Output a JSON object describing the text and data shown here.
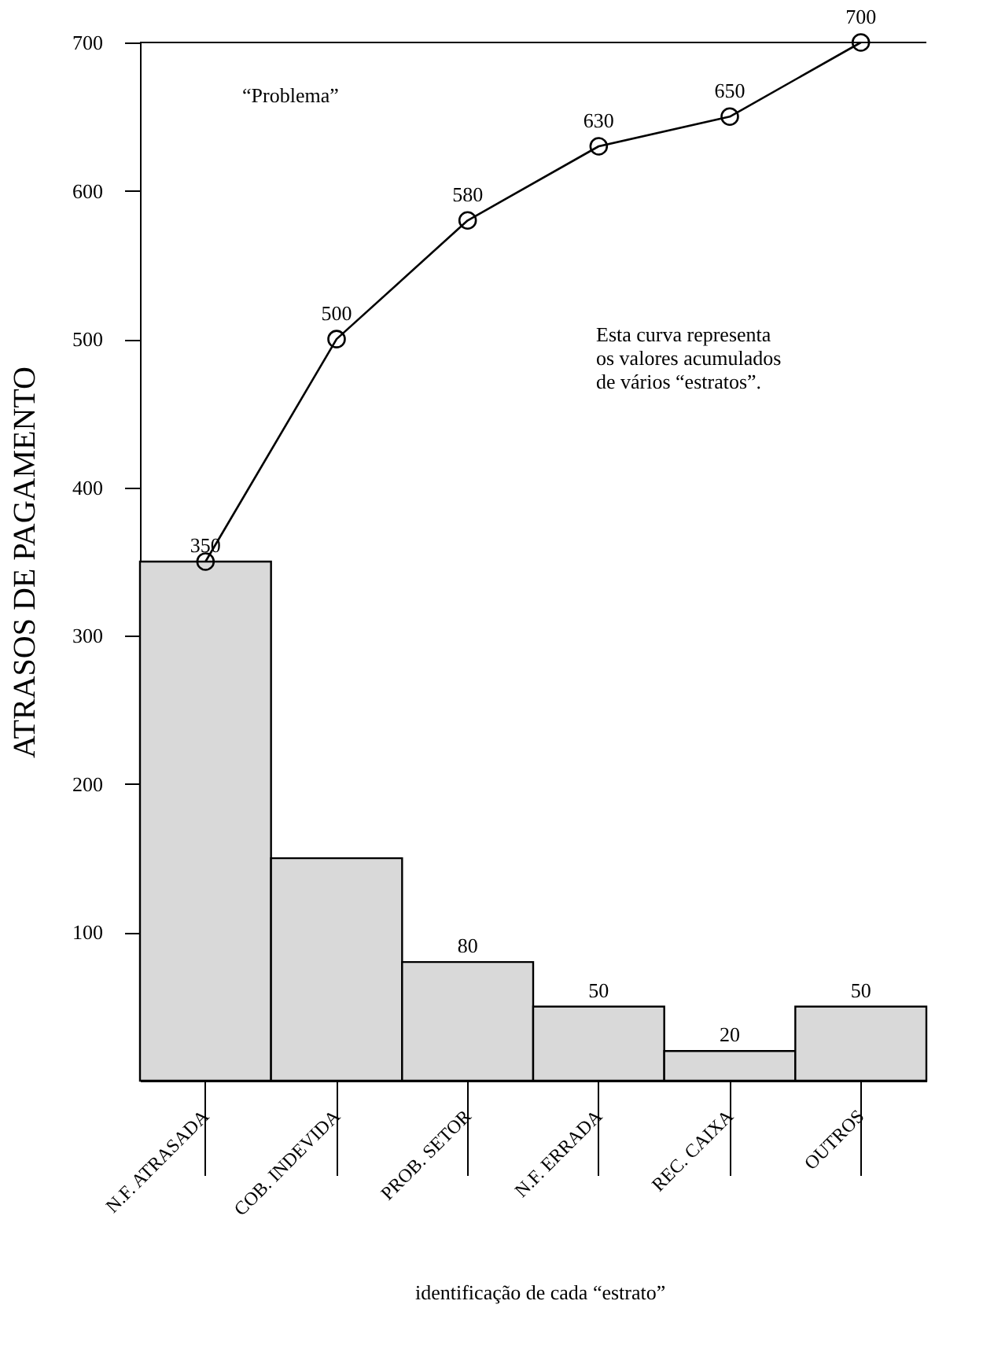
{
  "chart_data": {
    "type": "bar",
    "ylabel": "ATRASOS DE PAGAMENTO",
    "categories": [
      "N.F. ATRASADA",
      "COB. INDEVIDA",
      "PROB. SETOR",
      "N.F. ERRADA",
      "REC. CAIXA",
      "OUTROS"
    ],
    "ylim": [
      0,
      700
    ],
    "yticks": [
      100,
      200,
      300,
      400,
      500,
      600,
      700
    ],
    "grid": false,
    "series": [
      {
        "color": "#d9d9d9",
        "values": [
          350,
          150,
          80,
          50,
          20,
          50
        ],
        "value_labels": [
          "350",
          null,
          "80",
          "50",
          "20",
          "50"
        ]
      },
      {
        "type": "line",
        "color": "#000000",
        "marker": "circle",
        "values": [
          350,
          500,
          580,
          630,
          650,
          700
        ],
        "value_labels": [
          null,
          "500",
          "580",
          "630",
          "650",
          "700"
        ]
      }
    ],
    "annotations": [
      "“Problema”",
      "Esta curva representa os valores acumulados de vários “estratos”.",
      "identificação de cada “estrato”"
    ]
  }
}
